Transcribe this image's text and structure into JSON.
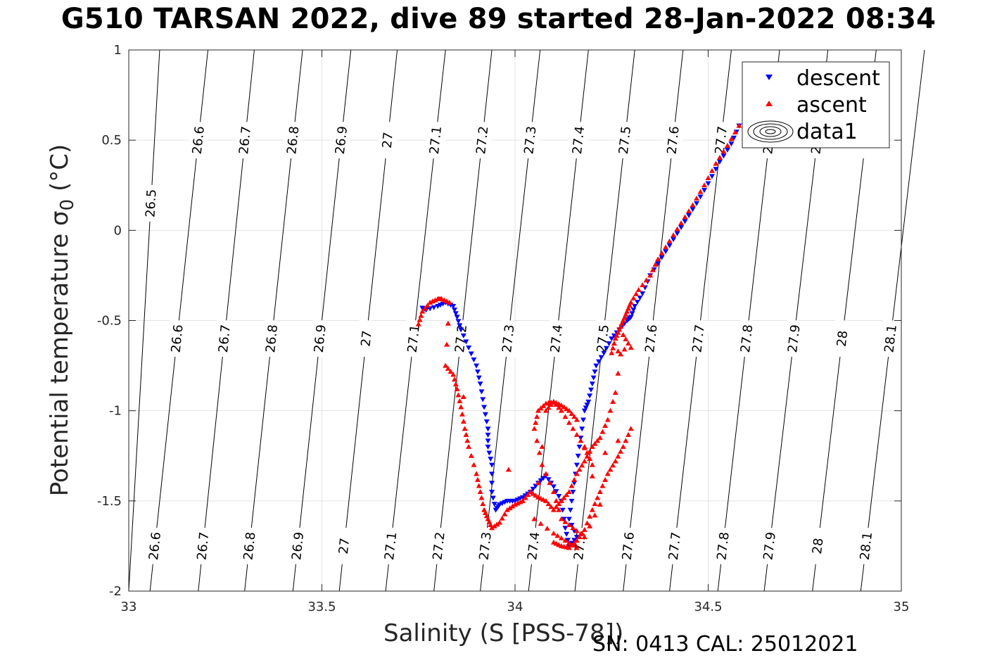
{
  "title": "G510 TARSAN 2022, dive 89 started 28-Jan-2022 08:34",
  "ylabel_main": "Potential temperature ",
  "ylabel_sigma": "σ",
  "ylabel_sub": "0",
  "ylabel_unit": " (°C)",
  "footer": "SN: 0413  CAL: 25012021",
  "chart_data": {
    "type": "scatter",
    "xlabel": "Salinity (S [PSS-78])",
    "ylabel": "Potential temperature σ0 (°C)",
    "xlim": [
      33,
      35
    ],
    "ylim": [
      -2,
      1
    ],
    "xticks": [
      33,
      33.5,
      34,
      34.5,
      35
    ],
    "yticks": [
      -2,
      -1.5,
      -1,
      -0.5,
      0,
      0.5,
      1
    ],
    "grid": true,
    "legend": {
      "position": "top-right",
      "entries": [
        "descent",
        "ascent",
        "data1"
      ]
    },
    "colors": {
      "descent": "#0000ff",
      "ascent": "#ff0000",
      "contour": "#000000"
    },
    "isopycnals": {
      "levels": [
        26.5,
        26.6,
        26.7,
        26.8,
        26.9,
        27,
        27.1,
        27.2,
        27.3,
        27.4,
        27.5,
        27.6,
        27.7,
        27.8,
        27.9,
        28,
        28.1
      ],
      "labels": [
        "26.5",
        "26.6",
        "26.7",
        "26.8",
        "26.9",
        "27",
        "27.1",
        "27.2",
        "27.3",
        "27.4",
        "27.5",
        "27.6",
        "27.7",
        "27.8",
        "27.9",
        "28",
        "28.1"
      ],
      "salinity_at_2C_below": [
        33.0,
        33.055,
        33.18,
        33.3,
        33.425,
        33.545,
        33.665,
        33.79,
        33.91,
        34.035,
        34.155,
        34.28,
        34.4,
        34.525,
        34.645,
        34.77,
        34.895
      ],
      "salinity_at_1C": [
        33.08,
        33.205,
        33.325,
        33.45,
        33.575,
        33.695,
        33.82,
        33.94,
        34.065,
        34.19,
        34.31,
        34.435,
        34.56,
        34.685,
        34.81,
        34.935,
        35.06
      ]
    },
    "series": [
      {
        "name": "descent",
        "marker": "triangle-down",
        "x": [
          34.58,
          34.56,
          34.53,
          34.5,
          34.47,
          34.44,
          34.41,
          34.38,
          34.35,
          34.33,
          34.31,
          34.3,
          34.29,
          34.27,
          34.25,
          34.23,
          34.21,
          34.2,
          34.19,
          34.18,
          34.17,
          34.16,
          34.15,
          34.14,
          34.16,
          34.14,
          34.13,
          34.12,
          34.1,
          34.08,
          34.06,
          34.04,
          34.02,
          34.0,
          33.98,
          33.96,
          33.95,
          33.94,
          33.94,
          33.93,
          33.93,
          33.92,
          33.91,
          33.9,
          33.88,
          33.86,
          33.85,
          33.84,
          33.82,
          33.8,
          33.77,
          33.76
        ],
        "y": [
          0.58,
          0.48,
          0.38,
          0.26,
          0.15,
          0.05,
          -0.05,
          -0.15,
          -0.25,
          -0.35,
          -0.42,
          -0.48,
          -0.5,
          -0.55,
          -0.6,
          -0.68,
          -0.75,
          -0.85,
          -0.95,
          -1.0,
          -1.15,
          -1.3,
          -1.45,
          -1.6,
          -1.7,
          -1.75,
          -1.65,
          -1.5,
          -1.42,
          -1.36,
          -1.4,
          -1.45,
          -1.48,
          -1.5,
          -1.5,
          -1.52,
          -1.55,
          -1.45,
          -1.3,
          -1.2,
          -1.1,
          -0.98,
          -0.85,
          -0.75,
          -0.65,
          -0.55,
          -0.48,
          -0.42,
          -0.4,
          -0.42,
          -0.44,
          -0.43
        ]
      },
      {
        "name": "ascent",
        "marker": "triangle-up",
        "x": [
          34.58,
          34.55,
          34.52,
          34.49,
          34.46,
          34.43,
          34.4,
          34.37,
          34.35,
          34.32,
          34.3,
          34.29,
          34.28,
          34.27,
          34.26,
          34.25,
          34.3,
          34.28,
          34.26,
          34.24,
          34.22,
          34.2,
          34.18,
          34.16,
          34.14,
          34.12,
          34.1,
          34.08,
          34.06,
          34.04,
          34.02,
          34.0,
          33.98,
          33.96,
          33.94,
          33.93,
          33.92,
          33.91,
          33.9,
          33.88,
          33.87,
          33.86,
          33.85,
          33.84,
          33.82,
          33.83,
          33.81,
          33.8,
          33.78,
          33.76,
          33.75,
          34.1,
          34.12,
          34.14,
          34.16,
          34.18,
          34.2,
          34.22,
          34.24,
          34.26,
          34.28,
          34.3,
          34.2,
          34.18,
          34.15,
          34.12,
          34.1,
          34.08,
          34.06,
          34.05,
          34.07,
          34.1,
          34.12,
          34.15,
          34.18,
          34.22,
          34.16,
          34.14,
          34.12,
          34.1,
          34.08,
          34.05,
          34.1,
          34.13,
          34.16
        ],
        "y": [
          0.58,
          0.47,
          0.37,
          0.25,
          0.14,
          0.04,
          -0.06,
          -0.16,
          -0.25,
          -0.33,
          -0.4,
          -0.45,
          -0.5,
          -0.55,
          -0.6,
          -0.68,
          -0.65,
          -0.58,
          -0.9,
          -1.05,
          -1.15,
          -1.2,
          -1.28,
          -1.35,
          -1.45,
          -1.5,
          -1.55,
          -1.5,
          -1.48,
          -1.45,
          -1.5,
          -1.52,
          -1.55,
          -1.62,
          -1.65,
          -1.6,
          -1.55,
          -1.45,
          -1.35,
          -1.2,
          -1.1,
          -0.98,
          -0.88,
          -0.8,
          -0.75,
          -0.4,
          -0.38,
          -0.38,
          -0.4,
          -0.45,
          -0.52,
          -1.73,
          -1.75,
          -1.76,
          -1.72,
          -1.66,
          -1.55,
          -1.45,
          -1.35,
          -1.28,
          -1.2,
          -1.1,
          -1.3,
          -1.2,
          -1.1,
          -1.0,
          -0.95,
          -0.96,
          -1.0,
          -1.1,
          -1.3,
          -1.45,
          -1.6,
          -1.65,
          -1.7,
          -1.52,
          -1.05,
          -1.0,
          -0.97,
          -0.95,
          -1.0,
          -1.6,
          -1.68,
          -1.72,
          -1.76
        ]
      }
    ]
  }
}
